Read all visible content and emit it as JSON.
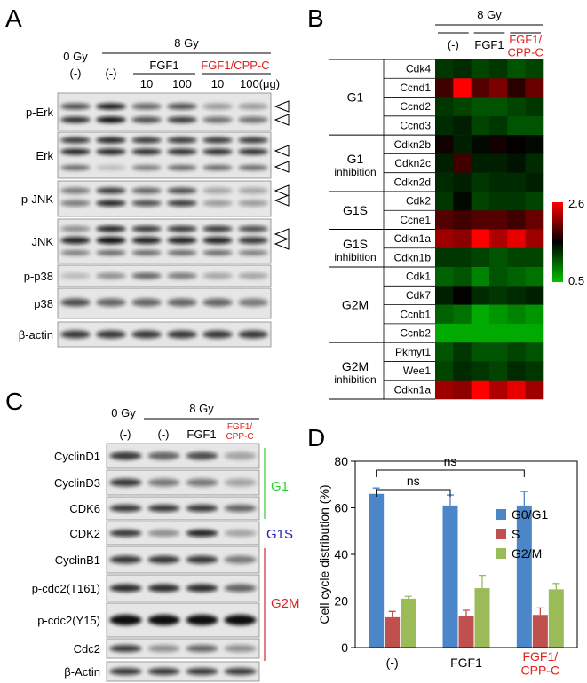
{
  "panel_a": {
    "letter": "A",
    "dose_0": "0 Gy",
    "dose_8": "8 Gy",
    "lanes": [
      "(-)",
      "(-)"
    ],
    "groups": [
      "FGF1",
      "FGF1/CPP-C"
    ],
    "amounts": [
      "10",
      "100",
      "10",
      "100(μg)"
    ],
    "rows": [
      "p-Erk",
      "Erk",
      "p-JNK",
      "JNK",
      "p-p38",
      "p38",
      "β-actin"
    ]
  },
  "panel_b": {
    "letter": "B",
    "dose": "8 Gy",
    "columns": [
      "(-)",
      "FGF1",
      "FGF1/\nCPP-C"
    ],
    "groups": [
      {
        "label": "G1",
        "genes": [
          "Cdk4",
          "Ccnd1",
          "Ccnd2",
          "Ccnd3"
        ]
      },
      {
        "label": "G1",
        "sublabel": "inhibition",
        "genes": [
          "Cdkn2b",
          "Cdkn2c",
          "Cdkn2d"
        ]
      },
      {
        "label": "G1S",
        "genes": [
          "Cdk2",
          "Ccne1"
        ]
      },
      {
        "label": "G1S",
        "sublabel": "inhibition",
        "genes": [
          "Cdkn1a",
          "Cdkn1b"
        ]
      },
      {
        "label": "G2M",
        "genes": [
          "Cdk1",
          "Cdk7",
          "Ccnb1",
          "Ccnb2"
        ]
      },
      {
        "label": "G2M",
        "sublabel": "inhibition",
        "genes": [
          "Pkmyt1",
          "Wee1",
          "Cdkn1a"
        ]
      }
    ],
    "values": [
      [
        0.9,
        0.95,
        0.85,
        0.9,
        0.8,
        0.85
      ],
      [
        1.4,
        2.6,
        1.5,
        1.7,
        1.3,
        1.6
      ],
      [
        0.9,
        0.85,
        0.8,
        0.8,
        0.85,
        0.9
      ],
      [
        0.95,
        1.0,
        0.85,
        0.9,
        0.8,
        0.8
      ],
      [
        1.2,
        1.0,
        1.1,
        1.2,
        1.15,
        1.1
      ],
      [
        1.0,
        1.4,
        1.0,
        1.0,
        1.05,
        0.95
      ],
      [
        0.95,
        1.0,
        0.9,
        0.95,
        0.95,
        1.0
      ],
      [
        0.9,
        1.1,
        0.85,
        0.9,
        0.9,
        0.85
      ],
      [
        1.5,
        1.4,
        1.5,
        1.5,
        1.4,
        1.6
      ],
      [
        1.9,
        1.8,
        2.6,
        2.0,
        2.4,
        1.9
      ],
      [
        0.9,
        0.9,
        0.85,
        0.8,
        0.85,
        0.85
      ],
      [
        0.75,
        0.8,
        0.65,
        0.8,
        0.75,
        0.7
      ],
      [
        1.0,
        1.15,
        0.95,
        0.9,
        0.95,
        1.0
      ],
      [
        0.75,
        0.7,
        0.55,
        0.6,
        0.65,
        0.6
      ],
      [
        0.55,
        0.55,
        0.55,
        0.55,
        0.55,
        0.55
      ],
      [
        0.8,
        0.9,
        0.8,
        0.8,
        0.85,
        0.8
      ],
      [
        0.85,
        0.95,
        0.9,
        0.85,
        0.95,
        0.9
      ],
      [
        1.9,
        1.8,
        2.6,
        2.0,
        2.4,
        1.9
      ]
    ],
    "colorbar": {
      "max": 2.6,
      "min": 0.5,
      "high_color": "#ff0000",
      "mid_color": "#000000",
      "low_color": "#00c000",
      "log_scale": true
    }
  },
  "panel_c": {
    "letter": "C",
    "dose_0": "0 Gy",
    "dose_8": "8 Gy",
    "lanes": [
      "(-)",
      "(-)",
      "FGF1",
      "FGF1/\nCPP-C"
    ],
    "rows": [
      "CyclinD1",
      "CyclinD3",
      "CDK6",
      "CDK2",
      "CyclinB1",
      "p-cdc2(T161)",
      "p-cdc2(Y15)",
      "Cdc2",
      "β-Actin"
    ],
    "brackets": [
      {
        "label": "G1",
        "color": "#33cc33"
      },
      {
        "label": "G1S",
        "color": "#2222bb"
      },
      {
        "label": "G2M",
        "color": "#d62728"
      }
    ]
  },
  "chart_data": {
    "type": "bar",
    "letter": "D",
    "ylabel": "Cell cycle distribution (%)",
    "categories": [
      "(-)",
      "FGF1",
      "FGF1/\nCPP-C"
    ],
    "category_colors": [
      "#000000",
      "#000000",
      "#e0201b"
    ],
    "series": [
      {
        "name": "G0/G1",
        "color": "#4a86c8",
        "values": [
          66,
          61,
          61
        ],
        "errors": [
          2.5,
          4.5,
          6
        ]
      },
      {
        "name": "S",
        "color": "#c0504d",
        "values": [
          13,
          13.5,
          14
        ],
        "errors": [
          2.5,
          2.5,
          3
        ]
      },
      {
        "name": "G2/M",
        "color": "#9bbb59",
        "values": [
          21,
          25.5,
          25
        ],
        "errors": [
          1,
          5.5,
          2.5
        ]
      }
    ],
    "ylim": [
      0,
      80
    ],
    "yticks": [
      0,
      20,
      40,
      60,
      80
    ],
    "legend": "upper right",
    "annotations": [
      "ns",
      "ns"
    ]
  }
}
